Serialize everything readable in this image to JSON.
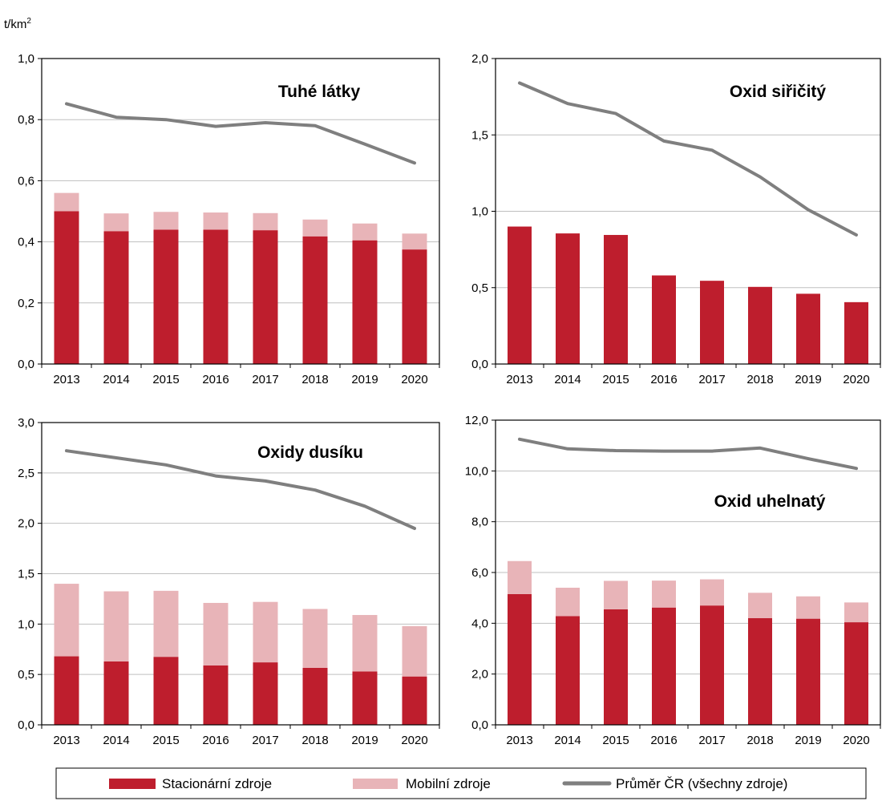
{
  "unit_label": "t/km",
  "unit_sup": "2",
  "colors": {
    "stationary": "#be1e2d",
    "mobile": "#e8b4b8",
    "average": "#7f7f7f",
    "grid": "#bfbfbf"
  },
  "legend": {
    "stationary": "Stacionární zdroje",
    "mobile": "Mobilní zdroje",
    "average": "Průměr ČR (všechny zdroje)"
  },
  "chart_data": [
    {
      "type": "bar",
      "title": "Tuhé látky",
      "categories": [
        "2013",
        "2014",
        "2015",
        "2016",
        "2017",
        "2018",
        "2019",
        "2020"
      ],
      "ylim": [
        0,
        1.0
      ],
      "yticks": [
        "0,0",
        "0,2",
        "0,4",
        "0,6",
        "0,8",
        "1,0"
      ],
      "stacked": true,
      "series": [
        {
          "name": "Stacionární zdroje",
          "values": [
            0.5,
            0.435,
            0.44,
            0.44,
            0.438,
            0.418,
            0.405,
            0.375
          ]
        },
        {
          "name": "Mobilní zdroje",
          "values": [
            0.06,
            0.058,
            0.058,
            0.056,
            0.056,
            0.055,
            0.055,
            0.052
          ]
        },
        {
          "name": "Průměr ČR (všechny zdroje)",
          "type": "line",
          "values": [
            0.852,
            0.808,
            0.8,
            0.778,
            0.79,
            0.78,
            0.72,
            0.658
          ]
        }
      ]
    },
    {
      "type": "bar",
      "title": "Oxid siřičitý",
      "categories": [
        "2013",
        "2014",
        "2015",
        "2016",
        "2017",
        "2018",
        "2019",
        "2020"
      ],
      "ylim": [
        0,
        2.0
      ],
      "yticks": [
        "0,0",
        "0,5",
        "1,0",
        "1,5",
        "2,0"
      ],
      "stacked": true,
      "series": [
        {
          "name": "Stacionární zdroje",
          "values": [
            0.9,
            0.855,
            0.845,
            0.58,
            0.545,
            0.505,
            0.46,
            0.405
          ]
        },
        {
          "name": "Mobilní zdroje",
          "values": [
            0,
            0,
            0,
            0,
            0,
            0,
            0,
            0
          ]
        },
        {
          "name": "Průměr ČR (všechny zdroje)",
          "type": "line",
          "values": [
            1.84,
            1.705,
            1.64,
            1.46,
            1.4,
            1.225,
            1.01,
            0.845
          ]
        }
      ]
    },
    {
      "type": "bar",
      "title": "Oxidy dusíku",
      "categories": [
        "2013",
        "2014",
        "2015",
        "2016",
        "2017",
        "2018",
        "2019",
        "2020"
      ],
      "ylim": [
        0,
        3.0
      ],
      "yticks": [
        "0,0",
        "0,5",
        "1,0",
        "1,5",
        "2,0",
        "2,5",
        "3,0"
      ],
      "stacked": true,
      "series": [
        {
          "name": "Stacionární zdroje",
          "values": [
            0.68,
            0.63,
            0.675,
            0.59,
            0.62,
            0.565,
            0.53,
            0.48
          ]
        },
        {
          "name": "Mobilní zdroje",
          "values": [
            0.72,
            0.695,
            0.655,
            0.62,
            0.6,
            0.585,
            0.56,
            0.5
          ]
        },
        {
          "name": "Průměr ČR (všechny zdroje)",
          "type": "line",
          "values": [
            2.72,
            2.65,
            2.58,
            2.47,
            2.42,
            2.33,
            2.17,
            1.95
          ]
        }
      ]
    },
    {
      "type": "bar",
      "title": "Oxid uhelnatý",
      "categories": [
        "2013",
        "2014",
        "2015",
        "2016",
        "2017",
        "2018",
        "2019",
        "2020"
      ],
      "ylim": [
        0,
        12.0
      ],
      "yticks": [
        "0,0",
        "2,0",
        "4,0",
        "6,0",
        "8,0",
        "10,0",
        "12,0"
      ],
      "stacked": true,
      "series": [
        {
          "name": "Stacionární zdroje",
          "values": [
            5.15,
            4.28,
            4.55,
            4.62,
            4.7,
            4.2,
            4.18,
            4.04
          ]
        },
        {
          "name": "Mobilní zdroje",
          "values": [
            1.3,
            1.12,
            1.12,
            1.06,
            1.03,
            1.0,
            0.88,
            0.78
          ]
        },
        {
          "name": "Průměr ČR (všechny zdroje)",
          "type": "line",
          "values": [
            11.25,
            10.87,
            10.8,
            10.78,
            10.78,
            10.9,
            10.48,
            10.1
          ]
        }
      ]
    }
  ]
}
